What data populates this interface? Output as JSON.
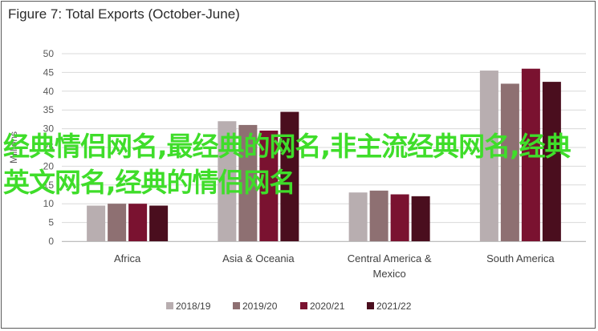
{
  "chart_data": {
    "type": "bar",
    "title": "Figure 7: Total Exports (October-June)",
    "categories": [
      "Africa",
      "Asia & Oceania",
      "Central America & Mexico",
      "South America"
    ],
    "series": [
      {
        "name": "2018/19",
        "color": "#b8aeb0",
        "values": [
          9.5,
          32,
          13,
          45.5
        ]
      },
      {
        "name": "2019/20",
        "color": "#8e7072",
        "values": [
          10,
          31,
          13.5,
          42
        ]
      },
      {
        "name": "2020/21",
        "color": "#7a1230",
        "values": [
          10,
          29.5,
          12.5,
          46
        ]
      },
      {
        "name": "2021/22",
        "color": "#4a0e1e",
        "values": [
          9.5,
          34.5,
          12,
          42.5
        ]
      }
    ],
    "ylabel": "Millions",
    "ylim": [
      0,
      50
    ],
    "yticks": [
      0,
      5,
      10,
      15,
      20,
      25,
      30,
      35,
      40,
      45,
      50
    ],
    "grid": true,
    "legend": "bottom"
  },
  "overlay_text": "经典情侣网名,最经典的网名,非主流经典网名,经典英文网名,经典的情侣网名"
}
